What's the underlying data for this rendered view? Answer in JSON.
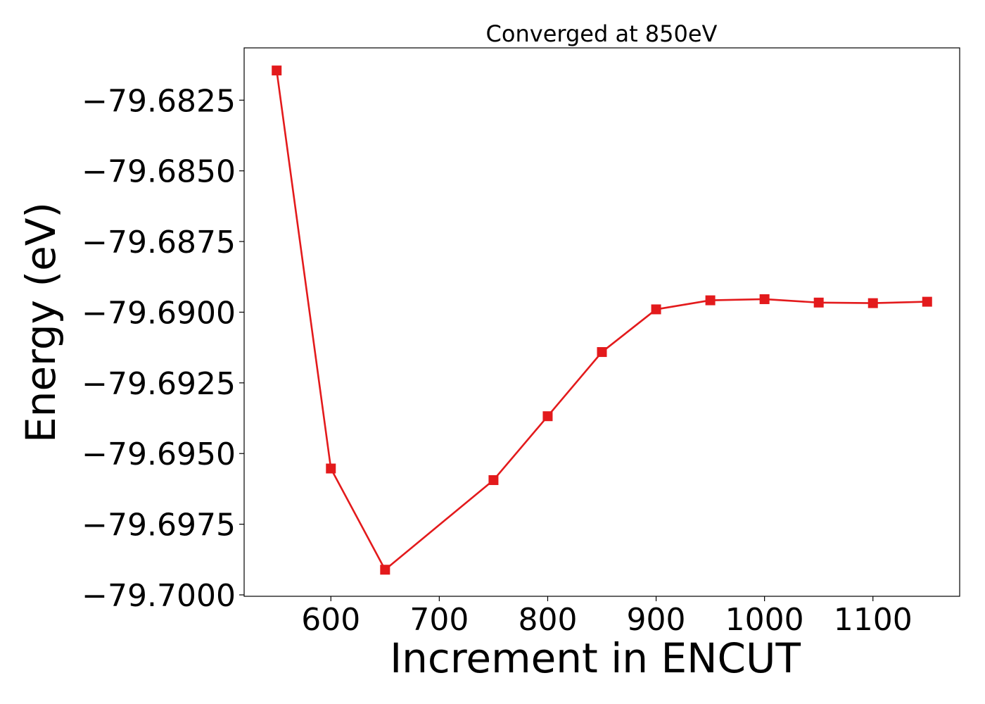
{
  "chart_data": {
    "type": "line",
    "title": "Converged at 850eV",
    "xlabel": "Increment in ENCUT",
    "ylabel": "Energy (eV)",
    "xlim": [
      520,
      1180
    ],
    "ylim": [
      -79.70005,
      -79.68065
    ],
    "x_ticks": [
      600,
      700,
      800,
      900,
      1000,
      1100
    ],
    "x_tick_labels": [
      "600",
      "700",
      "800",
      "900",
      "1000",
      "1100"
    ],
    "y_ticks": [
      -79.6825,
      -79.685,
      -79.6875,
      -79.69,
      -79.6925,
      -79.695,
      -79.6975,
      -79.7
    ],
    "y_tick_labels": [
      "−79.6825",
      "−79.6850",
      "−79.6875",
      "−79.6900",
      "−79.6925",
      "−79.6950",
      "−79.6975",
      "−79.7000"
    ],
    "grid": false,
    "series": [
      {
        "color": "#e31a1c",
        "marker": "square",
        "x": [
          550,
          600,
          650,
          750,
          800,
          850,
          900,
          950,
          1000,
          1050,
          1100,
          1150
        ],
        "y": [
          -79.68145,
          -79.69553,
          -79.69911,
          -79.69594,
          -79.69368,
          -79.69141,
          -79.6899,
          -79.68958,
          -79.68954,
          -79.68966,
          -79.68968,
          -79.68963
        ]
      }
    ]
  }
}
